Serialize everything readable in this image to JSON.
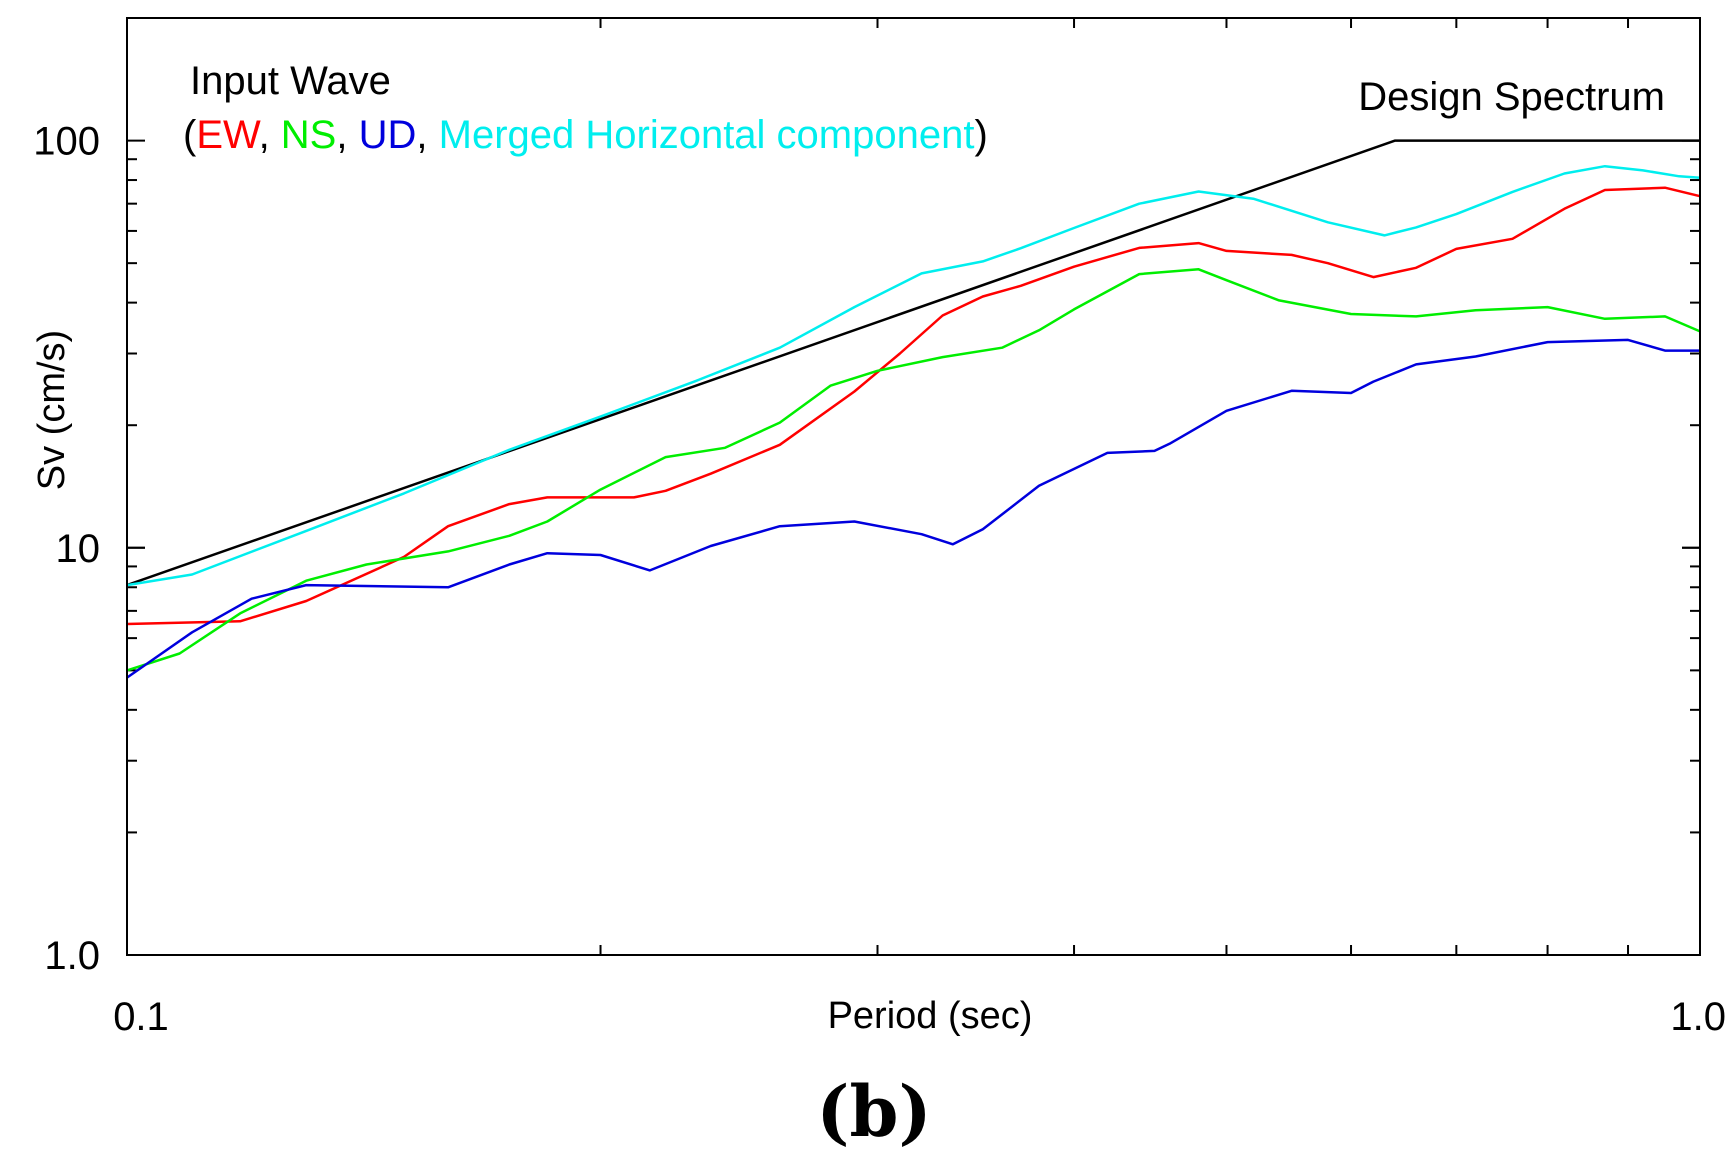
{
  "chart_data": {
    "type": "line",
    "panel_label": "(b)",
    "xlabel": "Period (sec)",
    "ylabel": "Sv (cm/s)",
    "xscale": "log",
    "yscale": "log",
    "xlim": [
      0.1,
      1.0
    ],
    "ylim": [
      1.0,
      200
    ],
    "xticks": [
      {
        "value": 0.1,
        "label": "0.1"
      },
      {
        "value": 1.0,
        "label": "1.0"
      }
    ],
    "yticks": [
      {
        "value": 1.0,
        "label": "1.0"
      },
      {
        "value": 10,
        "label": "10"
      },
      {
        "value": 100,
        "label": "100"
      }
    ],
    "legend": {
      "title": "Input Wave",
      "open": "(",
      "sep": ", ",
      "close": ")",
      "items": [
        "EW",
        "NS",
        "UD",
        "Merged Horizontal component"
      ]
    },
    "design_label": "Design Spectrum",
    "series": [
      {
        "name": "Design Spectrum",
        "color": "#000000",
        "x": [
          0.1,
          0.64,
          1.0
        ],
        "values": [
          8.1,
          100,
          100
        ]
      },
      {
        "name": "EW",
        "color": "#ff0000",
        "x": [
          0.1,
          0.118,
          0.13,
          0.15,
          0.16,
          0.175,
          0.185,
          0.2,
          0.21,
          0.22,
          0.235,
          0.26,
          0.29,
          0.31,
          0.33,
          0.35,
          0.37,
          0.4,
          0.44,
          0.48,
          0.5,
          0.55,
          0.58,
          0.62,
          0.66,
          0.7,
          0.76,
          0.82,
          0.87,
          0.95,
          1.0
        ],
        "values": [
          6.5,
          6.6,
          7.4,
          9.5,
          11.3,
          12.8,
          13.3,
          13.3,
          13.3,
          13.8,
          15.2,
          17.9,
          24.2,
          30.0,
          37.2,
          41.4,
          44.0,
          49.0,
          54.5,
          56.0,
          53.6,
          52.4,
          50.0,
          46.2,
          48.7,
          54.2,
          57.4,
          68.0,
          75.6,
          76.6,
          73.0
        ]
      },
      {
        "name": "NS",
        "color": "#00ee00",
        "x": [
          0.1,
          0.108,
          0.118,
          0.13,
          0.142,
          0.16,
          0.175,
          0.185,
          0.2,
          0.22,
          0.24,
          0.26,
          0.28,
          0.3,
          0.33,
          0.36,
          0.38,
          0.4,
          0.44,
          0.48,
          0.5,
          0.54,
          0.6,
          0.66,
          0.72,
          0.8,
          0.87,
          0.95,
          1.0
        ],
        "values": [
          5.0,
          5.5,
          6.9,
          8.3,
          9.1,
          9.8,
          10.7,
          11.6,
          13.9,
          16.7,
          17.6,
          20.3,
          25.0,
          27.2,
          29.4,
          31.0,
          34.2,
          38.5,
          47.0,
          48.3,
          45.4,
          40.5,
          37.5,
          37.0,
          38.3,
          39.0,
          36.5,
          37.0,
          34.0
        ]
      },
      {
        "name": "UD",
        "color": "#0000dd",
        "x": [
          0.1,
          0.11,
          0.12,
          0.13,
          0.16,
          0.175,
          0.185,
          0.2,
          0.215,
          0.235,
          0.26,
          0.29,
          0.32,
          0.335,
          0.35,
          0.38,
          0.42,
          0.45,
          0.46,
          0.5,
          0.55,
          0.6,
          0.62,
          0.66,
          0.72,
          0.8,
          0.9,
          0.95,
          1.0
        ],
        "values": [
          4.8,
          6.2,
          7.5,
          8.1,
          8.0,
          9.1,
          9.7,
          9.6,
          8.8,
          10.1,
          11.3,
          11.6,
          10.8,
          10.2,
          11.1,
          14.2,
          17.1,
          17.3,
          18.0,
          21.7,
          24.3,
          24.0,
          25.6,
          28.2,
          29.5,
          32.0,
          32.4,
          30.5,
          30.5
        ]
      },
      {
        "name": "Merged Horizontal component",
        "color": "#00eeee",
        "x": [
          0.1,
          0.11,
          0.13,
          0.15,
          0.175,
          0.2,
          0.23,
          0.26,
          0.29,
          0.32,
          0.35,
          0.37,
          0.4,
          0.44,
          0.48,
          0.52,
          0.58,
          0.63,
          0.66,
          0.7,
          0.76,
          0.82,
          0.87,
          0.92,
          0.97,
          1.0
        ],
        "values": [
          8.1,
          8.6,
          11.0,
          13.6,
          17.4,
          21.0,
          25.7,
          31.0,
          39.0,
          47.2,
          50.5,
          54.4,
          61.0,
          70.0,
          75.0,
          72.0,
          63.0,
          58.5,
          61.2,
          66.0,
          74.8,
          83.0,
          86.5,
          84.5,
          81.7,
          81.0
        ]
      }
    ]
  }
}
